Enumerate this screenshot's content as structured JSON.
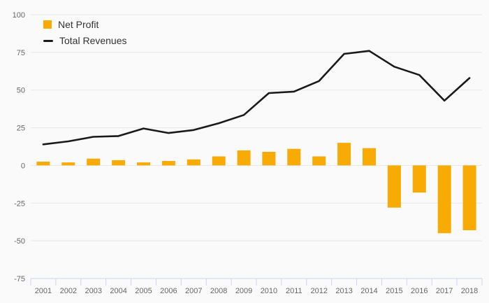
{
  "page": {
    "background": "#FAFAFA"
  },
  "chart_data": {
    "type": "bar",
    "subtype": "combo bar+line",
    "title": "",
    "xlabel": "",
    "ylabel": "",
    "categories": [
      "2001",
      "2002",
      "2003",
      "2004",
      "2005",
      "2006",
      "2007",
      "2008",
      "2009",
      "2010",
      "2011",
      "2012",
      "2013",
      "2014",
      "2015",
      "2016",
      "2017",
      "2018"
    ],
    "series": [
      {
        "name": "Net Profit",
        "type": "bar",
        "color": "#F9AB05",
        "values": [
          2.5,
          2,
          4.5,
          3.5,
          2,
          3,
          4,
          6,
          10,
          9,
          11,
          6,
          15,
          11.5,
          -28,
          -18,
          -45,
          -43
        ]
      },
      {
        "name": "Total Revenues",
        "type": "line",
        "color": "#1A1A1A",
        "values": [
          14,
          16,
          19,
          19.5,
          24.5,
          21.5,
          23.5,
          28,
          33.5,
          48,
          49,
          56,
          74,
          76,
          65.5,
          60,
          43,
          58
        ]
      }
    ],
    "ylim": [
      -75,
      100
    ],
    "yticks": [
      100,
      75,
      50,
      25,
      0,
      -25,
      -50,
      -75
    ],
    "grid": true,
    "legend_position": "top-left",
    "colors": {
      "background": "#FAFAFA",
      "gridline": "#E7E7E7",
      "axis_line": "#CCD6EB",
      "tick_label": "#666666",
      "legend_text": "#333333"
    }
  }
}
